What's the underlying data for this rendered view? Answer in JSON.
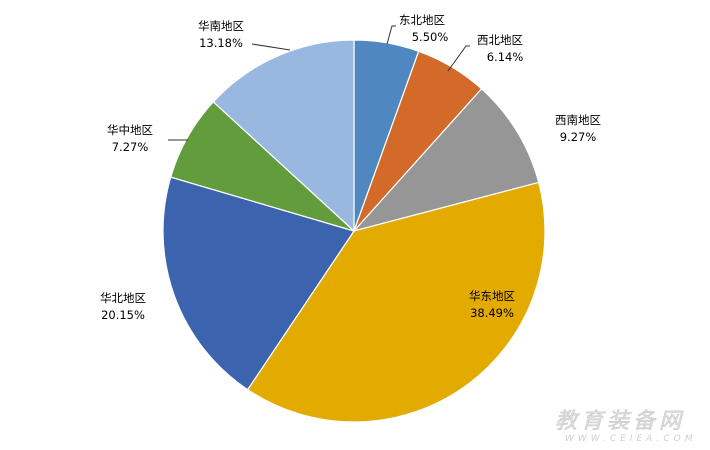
{
  "chart_data": {
    "type": "pie",
    "title": "",
    "start": "top, clockwise",
    "categories": [
      "东北地区",
      "西北地区",
      "西南地区",
      "华东地区",
      "华北地区",
      "华中地区",
      "华南地区"
    ],
    "values": [
      5.5,
      6.14,
      9.27,
      38.49,
      20.15,
      7.27,
      13.18
    ],
    "value_labels": [
      "5.50%",
      "6.14%",
      "9.27%",
      "38.49%",
      "20.15%",
      "7.27%",
      "13.18%"
    ],
    "colors": [
      "#4f88c0",
      "#d46a2a",
      "#969696",
      "#e3aa00",
      "#3c64ae",
      "#629c3c",
      "#98b8e0"
    ],
    "legend": "none"
  },
  "watermark": {
    "name": "教育装备网",
    "url": "WWW.CEIEA.COM"
  }
}
